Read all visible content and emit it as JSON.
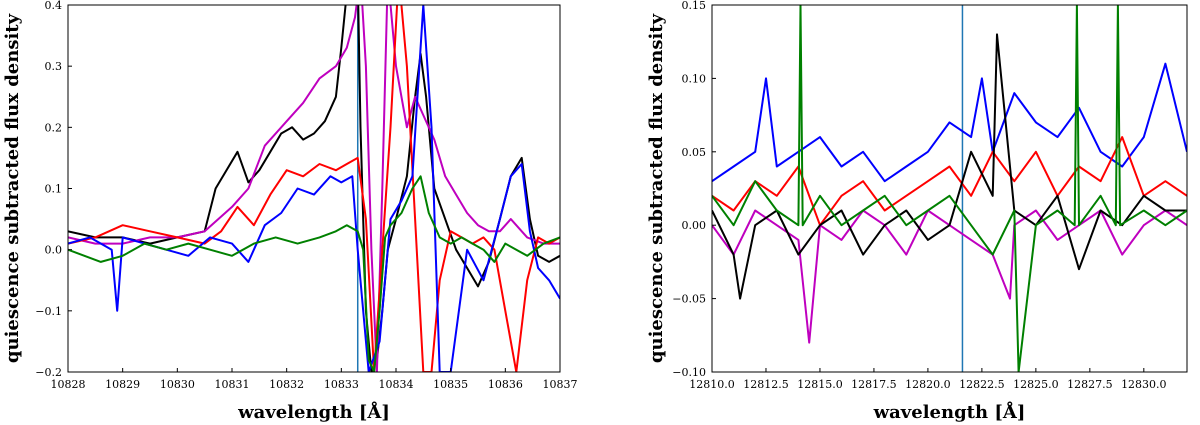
{
  "chart_data": [
    {
      "type": "line",
      "xlabel": "wavelength [Å]",
      "ylabel": "quiescence subtracted flux density",
      "xlim": [
        10828,
        10837
      ],
      "ylim": [
        -0.2,
        0.4
      ],
      "xticks": [
        10828,
        10829,
        10830,
        10831,
        10832,
        10833,
        10834,
        10835,
        10836,
        10837
      ],
      "yticks": [
        -0.2,
        -0.1,
        0.0,
        0.1,
        0.2,
        0.3,
        0.4
      ],
      "xtick_labels": [
        "10828",
        "10829",
        "10830",
        "10831",
        "10832",
        "10833",
        "10834",
        "10835",
        "10836",
        "10837"
      ],
      "ytick_labels": [
        "−0.2",
        "−0.1",
        "0.0",
        "0.1",
        "0.2",
        "0.3",
        "0.4"
      ],
      "grid": false,
      "vline": {
        "x": 10833.3,
        "color": "#1f77b4"
      },
      "series": [
        {
          "color": "#000000",
          "x": [
            10828,
            10828.5,
            10829,
            10829.5,
            10830,
            10830.5,
            10830.7,
            10830.9,
            10831.1,
            10831.3,
            10831.5,
            10831.7,
            10831.9,
            10832.1,
            10832.3,
            10832.5,
            10832.7,
            10832.9,
            10833.0,
            10833.1,
            10833.2,
            10833.3,
            10833.35,
            10833.45,
            10833.55,
            10833.65,
            10833.75,
            10833.85,
            10834.0,
            10834.2,
            10834.35,
            10834.45,
            10834.55,
            10834.7,
            10834.9,
            10835.1,
            10835.3,
            10835.5,
            10835.7,
            10835.9,
            10836.1,
            10836.3,
            10836.45,
            10836.6,
            10836.8,
            10837
          ],
          "y": [
            0.03,
            0.02,
            0.02,
            0.01,
            0.02,
            0.03,
            0.1,
            0.13,
            0.16,
            0.11,
            0.13,
            0.16,
            0.19,
            0.2,
            0.18,
            0.19,
            0.21,
            0.25,
            0.33,
            0.42,
            0.45,
            0.45,
            0.2,
            -0.1,
            -0.2,
            -0.18,
            -0.1,
            0.0,
            0.05,
            0.12,
            0.25,
            0.32,
            0.25,
            0.1,
            0.05,
            0.0,
            -0.03,
            -0.06,
            -0.02,
            0.05,
            0.12,
            0.15,
            0.05,
            -0.01,
            -0.02,
            -0.01
          ]
        },
        {
          "color": "#bf00bf",
          "x": [
            10828,
            10828.5,
            10829,
            10829.5,
            10830,
            10830.5,
            10831,
            10831.3,
            10831.6,
            10832,
            10832.3,
            10832.6,
            10832.9,
            10833.1,
            10833.25,
            10833.35,
            10833.45,
            10833.55,
            10833.65,
            10833.75,
            10833.85,
            10834.0,
            10834.2,
            10834.35,
            10834.5,
            10834.7,
            10834.9,
            10835.1,
            10835.3,
            10835.5,
            10835.7,
            10835.9,
            10836.1,
            10836.4,
            10836.7,
            10837
          ],
          "y": [
            0.02,
            0.01,
            0.01,
            0.02,
            0.02,
            0.03,
            0.07,
            0.1,
            0.17,
            0.21,
            0.24,
            0.28,
            0.3,
            0.33,
            0.38,
            0.45,
            0.3,
            0.0,
            -0.2,
            0.1,
            0.45,
            0.3,
            0.2,
            0.25,
            0.22,
            0.18,
            0.12,
            0.09,
            0.06,
            0.04,
            0.03,
            0.03,
            0.05,
            0.02,
            0.01,
            0.01
          ]
        },
        {
          "color": "#ff0000",
          "x": [
            10828,
            10828.5,
            10829,
            10829.5,
            10830,
            10830.5,
            10830.8,
            10831.1,
            10831.4,
            10831.7,
            10832.0,
            10832.3,
            10832.6,
            10832.9,
            10833.1,
            10833.3,
            10833.45,
            10833.6,
            10833.75,
            10833.9,
            10834.05,
            10834.2,
            10834.35,
            10834.5,
            10834.65,
            10834.8,
            10835.0,
            10835.2,
            10835.4,
            10835.6,
            10835.8,
            10836.0,
            10836.2,
            10836.4,
            10836.6,
            10836.8,
            10837
          ],
          "y": [
            0.01,
            0.02,
            0.04,
            0.03,
            0.02,
            0.01,
            0.03,
            0.07,
            0.04,
            0.09,
            0.13,
            0.12,
            0.14,
            0.13,
            0.14,
            0.15,
            0.05,
            -0.2,
            0.0,
            0.2,
            0.45,
            0.3,
            0.05,
            -0.2,
            -0.2,
            -0.05,
            0.03,
            0.02,
            0.01,
            0.02,
            0.0,
            -0.1,
            -0.2,
            -0.05,
            0.02,
            0.01,
            0.02
          ]
        },
        {
          "color": "#0000ff",
          "x": [
            10828,
            10828.4,
            10828.8,
            10828.9,
            10829.0,
            10829.4,
            10829.8,
            10830.2,
            10830.6,
            10831.0,
            10831.3,
            10831.6,
            10831.9,
            10832.2,
            10832.5,
            10832.8,
            10833.0,
            10833.2,
            10833.3,
            10833.5,
            10833.7,
            10833.9,
            10834.1,
            10834.3,
            10834.5,
            10834.65,
            10834.8,
            10835.0,
            10835.3,
            10835.6,
            10835.9,
            10836.1,
            10836.3,
            10836.45,
            10836.6,
            10836.8,
            10837
          ],
          "y": [
            0.01,
            0.02,
            0.0,
            -0.1,
            0.02,
            0.01,
            0.0,
            -0.01,
            0.02,
            0.01,
            -0.02,
            0.04,
            0.06,
            0.1,
            0.09,
            0.12,
            0.11,
            0.12,
            0.0,
            -0.2,
            -0.15,
            0.05,
            0.08,
            0.12,
            0.4,
            0.2,
            -0.2,
            -0.2,
            0.0,
            -0.05,
            0.05,
            0.12,
            0.14,
            0.03,
            -0.03,
            -0.05,
            -0.08
          ]
        },
        {
          "color": "#008000",
          "x": [
            10828,
            10828.3,
            10828.6,
            10829,
            10829.4,
            10829.8,
            10830.2,
            10830.6,
            10831.0,
            10831.4,
            10831.8,
            10832.2,
            10832.6,
            10832.9,
            10833.1,
            10833.3,
            10833.4,
            10833.5,
            10833.6,
            10833.7,
            10833.8,
            10833.9,
            10834.1,
            10834.3,
            10834.45,
            10834.6,
            10834.8,
            10835.0,
            10835.2,
            10835.4,
            10835.6,
            10835.8,
            10836.0,
            10836.2,
            10836.4,
            10836.7,
            10837
          ],
          "y": [
            0.0,
            -0.01,
            -0.02,
            -0.01,
            0.01,
            0.0,
            0.01,
            0.0,
            -0.01,
            0.01,
            0.02,
            0.01,
            0.02,
            0.03,
            0.04,
            0.03,
            0.0,
            -0.18,
            -0.2,
            -0.1,
            0.02,
            0.04,
            0.06,
            0.1,
            0.12,
            0.06,
            0.02,
            0.01,
            0.02,
            0.01,
            0.0,
            -0.02,
            0.01,
            0.0,
            -0.01,
            0.01,
            0.02
          ]
        }
      ]
    },
    {
      "type": "line",
      "xlabel": "wavelength [Å]",
      "ylabel": "quiescence subtracted flux density",
      "xlim": [
        12810,
        12832
      ],
      "ylim": [
        -0.1,
        0.15
      ],
      "xticks": [
        12810.0,
        12812.5,
        12815.0,
        12817.5,
        12820.0,
        12822.5,
        12825.0,
        12827.5,
        12830.0
      ],
      "yticks": [
        -0.1,
        -0.05,
        0.0,
        0.05,
        0.1,
        0.15
      ],
      "xtick_labels": [
        "12810.0",
        "12812.5",
        "12815.0",
        "12817.5",
        "12820.0",
        "12822.5",
        "12825.0",
        "12827.5",
        "12830.0"
      ],
      "ytick_labels": [
        "−0.10",
        "−0.05",
        "0.00",
        "0.05",
        "0.10",
        "0.15"
      ],
      "grid": false,
      "vline": {
        "x": 12821.6,
        "color": "#1f77b4"
      },
      "series": [
        {
          "color": "#0000ff",
          "x": [
            12810,
            12811,
            12812,
            12812.5,
            12813,
            12814,
            12815,
            12816,
            12817,
            12818,
            12819,
            12820,
            12821,
            12822,
            12822.5,
            12823,
            12824,
            12825,
            12826,
            12827,
            12828,
            12829,
            12830,
            12831,
            12832
          ],
          "y": [
            0.03,
            0.04,
            0.05,
            0.1,
            0.04,
            0.05,
            0.06,
            0.04,
            0.05,
            0.03,
            0.04,
            0.05,
            0.07,
            0.06,
            0.1,
            0.05,
            0.09,
            0.07,
            0.06,
            0.08,
            0.05,
            0.04,
            0.06,
            0.11,
            0.05
          ]
        },
        {
          "color": "#ff0000",
          "x": [
            12810,
            12811,
            12812,
            12813,
            12814,
            12815,
            12816,
            12817,
            12818,
            12819,
            12820,
            12821,
            12822,
            12823,
            12824,
            12825,
            12826,
            12827,
            12828,
            12829,
            12830,
            12831,
            12832
          ],
          "y": [
            0.02,
            0.01,
            0.03,
            0.02,
            0.04,
            0.0,
            0.02,
            0.03,
            0.01,
            0.02,
            0.03,
            0.04,
            0.02,
            0.05,
            0.03,
            0.05,
            0.02,
            0.04,
            0.03,
            0.06,
            0.02,
            0.03,
            0.02
          ]
        },
        {
          "color": "#bf00bf",
          "x": [
            12810,
            12811,
            12812,
            12813,
            12814,
            12814.5,
            12815,
            12816,
            12817,
            12818,
            12819,
            12820,
            12821,
            12822,
            12823,
            12823.8,
            12824,
            12825,
            12826,
            12827,
            12828,
            12829,
            12830,
            12831,
            12832
          ],
          "y": [
            0.0,
            -0.02,
            0.01,
            0.0,
            -0.01,
            -0.08,
            0.0,
            -0.01,
            0.01,
            0.0,
            -0.02,
            0.01,
            0.0,
            -0.01,
            -0.02,
            -0.05,
            0.0,
            0.01,
            -0.01,
            0.0,
            0.01,
            -0.02,
            0.0,
            0.01,
            0.0
          ]
        },
        {
          "color": "#000000",
          "x": [
            12810,
            12811,
            12811.3,
            12812,
            12813,
            12814,
            12815,
            12816,
            12817,
            12818,
            12819,
            12820,
            12821,
            12822,
            12823,
            12823.2,
            12824,
            12825,
            12826,
            12827,
            12828,
            12829,
            12830,
            12831,
            12832
          ],
          "y": [
            0.01,
            -0.02,
            -0.05,
            0.0,
            0.01,
            -0.02,
            0.0,
            0.01,
            -0.02,
            0.0,
            0.01,
            -0.01,
            0.0,
            0.05,
            0.02,
            0.13,
            0.01,
            0.0,
            0.02,
            -0.03,
            0.01,
            0.0,
            0.02,
            0.01,
            0.01
          ]
        },
        {
          "color": "#008000",
          "x": [
            12810,
            12811,
            12812,
            12813,
            12814,
            12814.1,
            12814.2,
            12815,
            12816,
            12817,
            12818,
            12819,
            12820,
            12821,
            12822,
            12823,
            12824,
            12824.2,
            12825,
            12826,
            12826.8,
            12826.9,
            12827,
            12828,
            12828.7,
            12828.8,
            12828.9,
            12830,
            12831,
            12832
          ],
          "y": [
            0.02,
            0.0,
            0.03,
            0.01,
            0.0,
            0.15,
            0.0,
            0.02,
            0.0,
            0.01,
            0.02,
            0.0,
            0.01,
            0.02,
            0.0,
            -0.02,
            0.01,
            -0.1,
            0.0,
            0.01,
            0.0,
            0.15,
            0.0,
            0.02,
            0.0,
            0.15,
            0.0,
            0.01,
            0.0,
            0.01
          ]
        }
      ]
    }
  ]
}
